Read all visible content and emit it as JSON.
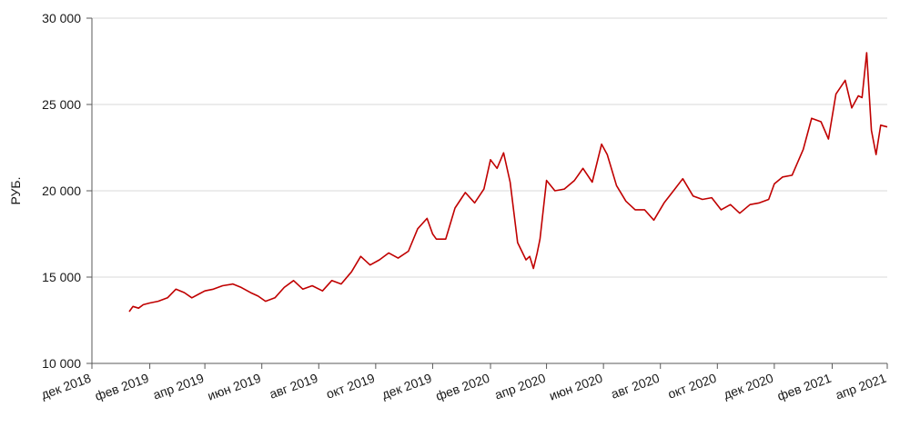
{
  "chart_data": {
    "type": "line",
    "title": "",
    "xlabel": "",
    "ylabel": "РУБ.",
    "ylim": [
      10000,
      30000
    ],
    "yticks": [
      10000,
      15000,
      20000,
      25000,
      30000
    ],
    "ytick_labels": [
      "10 000",
      "15 000",
      "20 000",
      "25 000",
      "30 000"
    ],
    "xlim": [
      "2018-12-01",
      "2021-04-01"
    ],
    "xticks": [
      "2018-12-01",
      "2019-02-01",
      "2019-04-01",
      "2019-06-01",
      "2019-08-01",
      "2019-10-01",
      "2019-12-01",
      "2020-02-01",
      "2020-04-01",
      "2020-06-01",
      "2020-08-01",
      "2020-10-01",
      "2020-12-01",
      "2021-02-01",
      "2021-04-01"
    ],
    "xtick_labels": [
      "дек 2018",
      "фев 2019",
      "апр 2019",
      "июн 2019",
      "авг 2019",
      "окт 2019",
      "дек 2019",
      "фев 2020",
      "апр 2020",
      "июн 2020",
      "авг 2020",
      "окт 2020",
      "дек 2020",
      "фев 2021",
      "апр 2021"
    ],
    "grid": "horizontal",
    "colors": {
      "series": "#c00000",
      "grid": "#d9d9d9",
      "axis": "#595959"
    },
    "series": [
      {
        "x": [
          "2019-01-10",
          "2019-01-14",
          "2019-01-20",
          "2019-01-25",
          "2019-02-01",
          "2019-02-10",
          "2019-02-20",
          "2019-03-01",
          "2019-03-10",
          "2019-03-18",
          "2019-03-25",
          "2019-04-01",
          "2019-04-10",
          "2019-04-20",
          "2019-05-01",
          "2019-05-10",
          "2019-05-20",
          "2019-05-28",
          "2019-06-05",
          "2019-06-15",
          "2019-06-25",
          "2019-07-05",
          "2019-07-15",
          "2019-07-25",
          "2019-08-05",
          "2019-08-15",
          "2019-08-25",
          "2019-09-05",
          "2019-09-15",
          "2019-09-25",
          "2019-10-05",
          "2019-10-15",
          "2019-10-25",
          "2019-11-05",
          "2019-11-15",
          "2019-11-25",
          "2019-12-01",
          "2019-12-05",
          "2019-12-15",
          "2019-12-25",
          "2020-01-05",
          "2020-01-15",
          "2020-01-25",
          "2020-02-01",
          "2020-02-08",
          "2020-02-15",
          "2020-02-22",
          "2020-03-01",
          "2020-03-10",
          "2020-03-14",
          "2020-03-18",
          "2020-03-22",
          "2020-03-25",
          "2020-04-01",
          "2020-04-10",
          "2020-04-20",
          "2020-05-01",
          "2020-05-10",
          "2020-05-20",
          "2020-05-30",
          "2020-06-05",
          "2020-06-15",
          "2020-06-25",
          "2020-07-05",
          "2020-07-15",
          "2020-07-25",
          "2020-08-05",
          "2020-08-15",
          "2020-08-25",
          "2020-09-05",
          "2020-09-15",
          "2020-09-25",
          "2020-10-05",
          "2020-10-15",
          "2020-10-25",
          "2020-11-05",
          "2020-11-15",
          "2020-11-25",
          "2020-12-01",
          "2020-12-10",
          "2020-12-20",
          "2021-01-01",
          "2021-01-10",
          "2021-01-20",
          "2021-01-28",
          "2021-02-05",
          "2021-02-15",
          "2021-02-22",
          "2021-03-01",
          "2021-03-05",
          "2021-03-10",
          "2021-03-15",
          "2021-03-20",
          "2021-03-25",
          "2021-04-01"
        ],
        "values": [
          13000,
          13300,
          13200,
          13400,
          13500,
          13600,
          13800,
          14300,
          14100,
          13800,
          14000,
          14200,
          14300,
          14500,
          14600,
          14400,
          14100,
          13900,
          13600,
          13800,
          14400,
          14800,
          14300,
          14500,
          14200,
          14800,
          14600,
          15300,
          16200,
          15700,
          16000,
          16400,
          16100,
          16500,
          17800,
          18400,
          17500,
          17200,
          17200,
          19000,
          19900,
          19300,
          20100,
          21800,
          21300,
          22200,
          20500,
          17000,
          16000,
          16200,
          15500,
          16400,
          17200,
          20600,
          20000,
          20100,
          20600,
          21300,
          20500,
          22700,
          22100,
          20300,
          19400,
          18900,
          18900,
          18300,
          19300,
          20000,
          20700,
          19700,
          19500,
          19600,
          18900,
          19200,
          18700,
          19200,
          19300,
          19500,
          20400,
          20800,
          20900,
          22400,
          24200,
          24000,
          23000,
          25600,
          26400,
          24800,
          25500,
          25400,
          28000,
          23500,
          22100,
          23800,
          23700
        ]
      }
    ]
  }
}
